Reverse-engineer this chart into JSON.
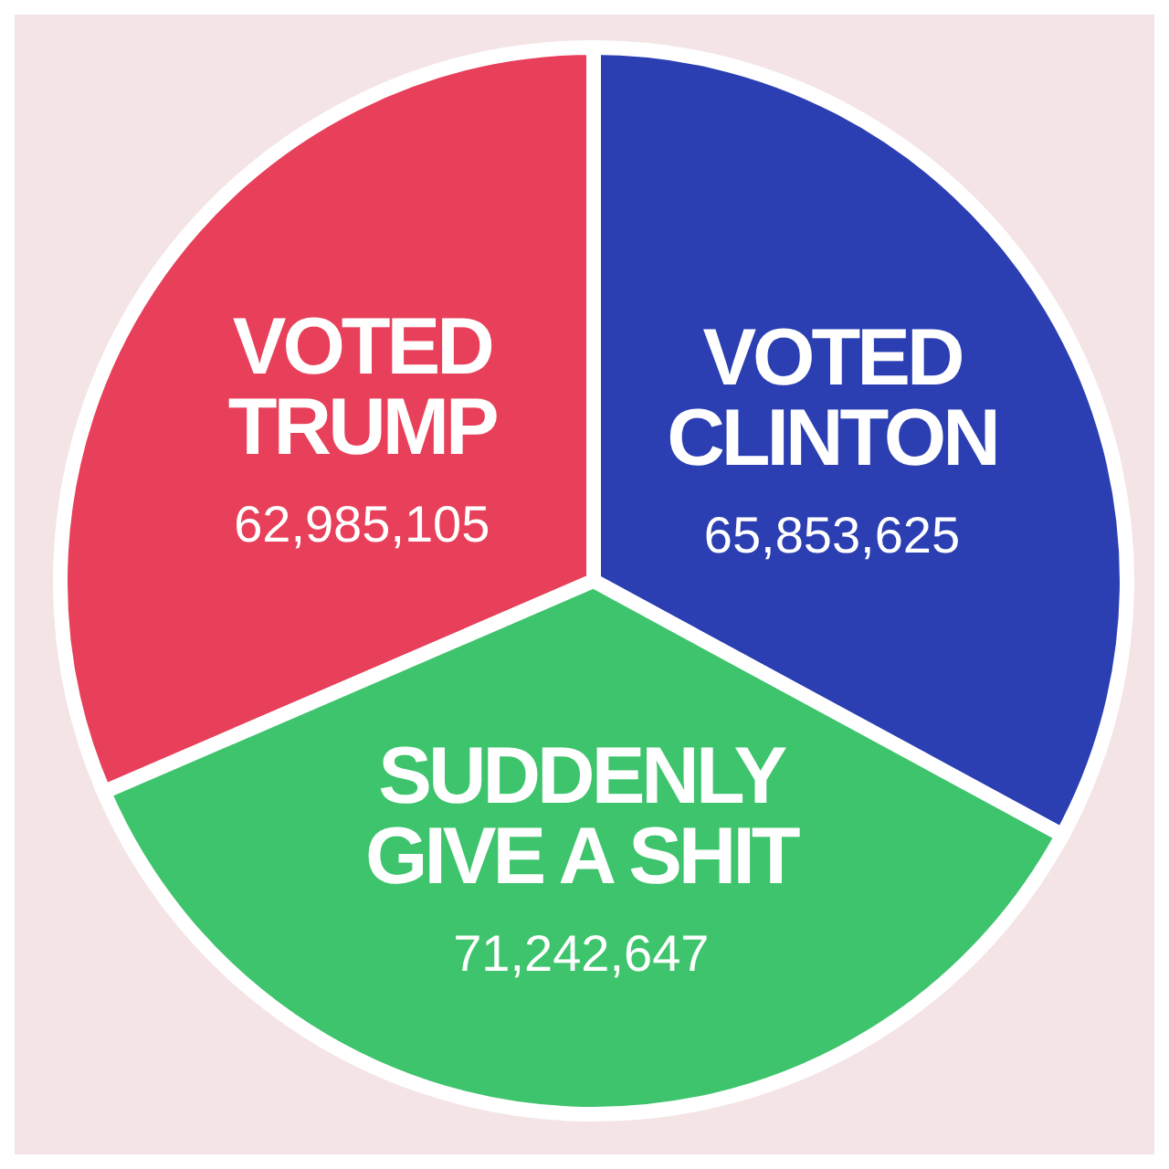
{
  "chart_data": {
    "type": "pie",
    "categories": [
      "VOTED TRUMP",
      "VOTED CLINTON",
      "SUDDENLY GIVE A SHIT"
    ],
    "values": [
      62985105,
      65853625,
      71242647
    ],
    "colors": [
      "#e8405a",
      "#2b3fb2",
      "#3ec46c"
    ],
    "value_labels": [
      "62,985,105",
      "65,853,625",
      "71,242,647"
    ]
  }
}
